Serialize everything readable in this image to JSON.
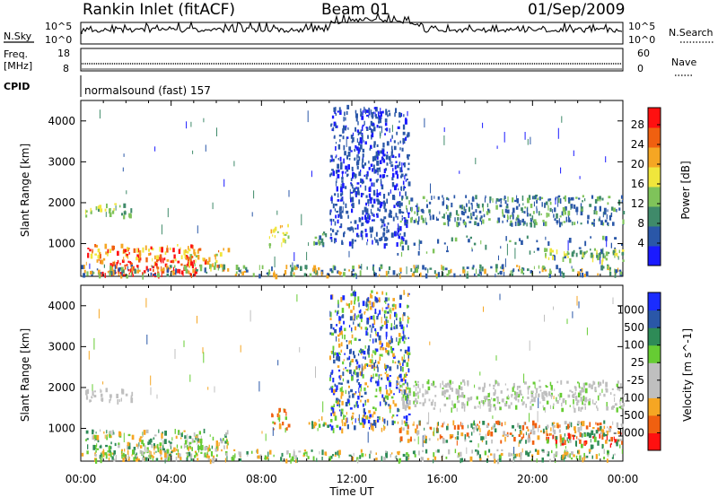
{
  "header": {
    "station": "Rankin Inlet (fitACF)",
    "beam": "Beam 01",
    "date": "01/Sep/2009"
  },
  "top_panels": {
    "nsky_label": "N.Sky",
    "nsky_ticks": [
      "10^5",
      "10^0"
    ],
    "nsearch_label": "N.Search",
    "nsearch_ticks": [
      "10^5",
      "10^0"
    ],
    "freq_label": "Freq.",
    "freq_unit": "[MHz]",
    "freq_ticks": [
      "18",
      "8"
    ],
    "nave_label": "Nave",
    "nave_ticks": [
      "60",
      "0"
    ],
    "cpid_label": "CPID",
    "cpid_text": "normalsound (fast) 157"
  },
  "colors": {
    "power_scale": [
      "#1a1aff",
      "#2a57a8",
      "#3f8a6a",
      "#7fc35a",
      "#f0e63c",
      "#f5a623",
      "#f06010",
      "#ff1010"
    ],
    "velocity_scale": [
      "#ff1010",
      "#f06010",
      "#f5a623",
      "#bfbfbf",
      "#bfbfbf",
      "#66cc33",
      "#2e8b57",
      "#2a57a8",
      "#1a2cff"
    ]
  },
  "chart_data": [
    {
      "type": "heatmap",
      "panel": "power",
      "ylabel": "Slant Range [km]",
      "xlabel": "Time UT",
      "x_ticks": [
        "00:00",
        "04:00",
        "08:00",
        "12:00",
        "16:00",
        "20:00",
        "00:00"
      ],
      "y_ticks": [
        "1000",
        "2000",
        "3000",
        "4000"
      ],
      "ylim": [
        200,
        4500
      ],
      "xlim_hours": [
        0,
        24
      ],
      "colorbar_label": "Power [dB]",
      "colorbar_ticks": [
        "28",
        "24",
        "20",
        "16",
        "12",
        "8",
        "4"
      ],
      "colorbar_range": [
        0,
        30
      ]
    },
    {
      "type": "heatmap",
      "panel": "velocity",
      "ylabel": "Slant Range [km]",
      "xlabel": "Time UT",
      "x_ticks": [
        "00:00",
        "04:00",
        "08:00",
        "12:00",
        "16:00",
        "20:00",
        "00:00"
      ],
      "y_ticks": [
        "1000",
        "2000",
        "3000",
        "4000"
      ],
      "ylim": [
        200,
        4500
      ],
      "xlim_hours": [
        0,
        24
      ],
      "colorbar_label": "Velocity [m s^-1]",
      "colorbar_ticks": [
        "1000",
        "500",
        "100",
        "25",
        "-25",
        "-100",
        "-500",
        "-1000"
      ],
      "colorbar_range": [
        -1000,
        1000
      ]
    }
  ]
}
